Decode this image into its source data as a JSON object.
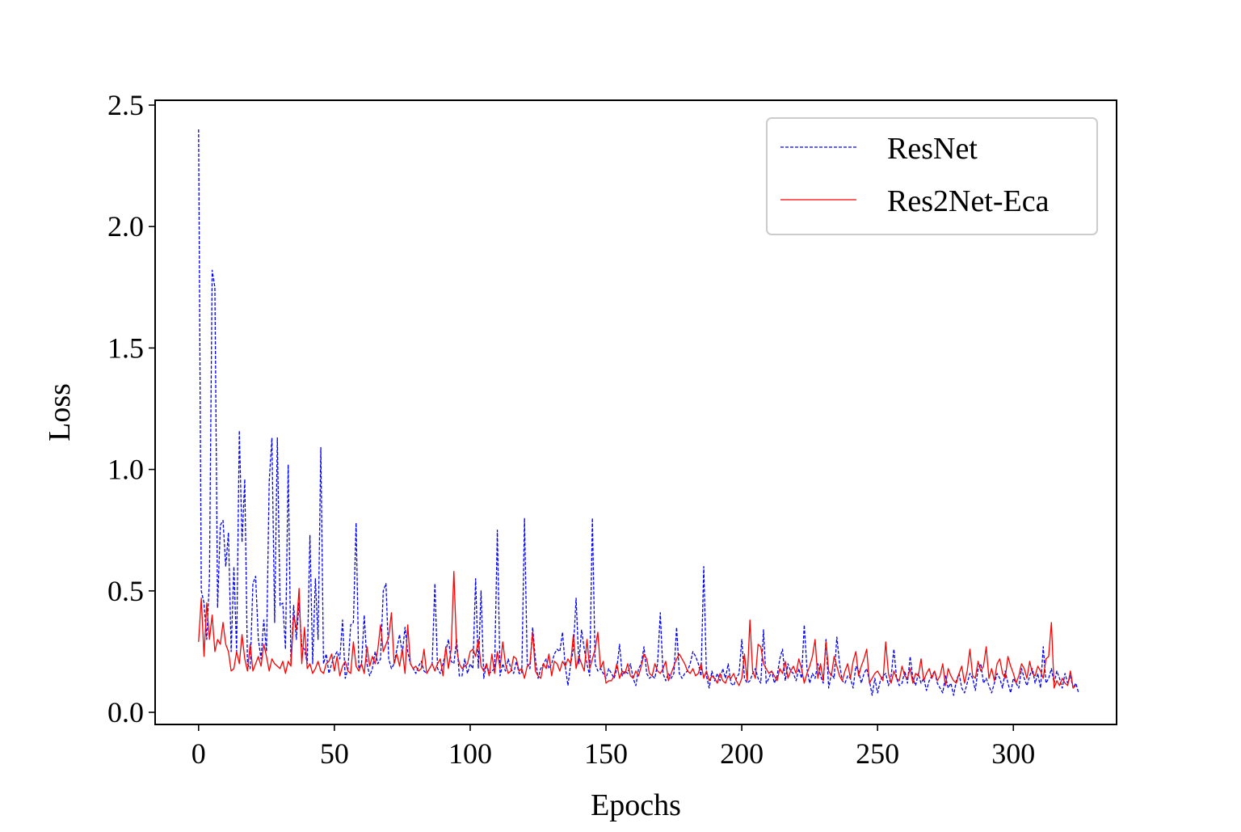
{
  "chart_data": {
    "type": "line",
    "title": "",
    "xlabel": "Epochs",
    "ylabel": "Loss",
    "xlim": [
      -16,
      338
    ],
    "ylim": [
      -0.05,
      2.52
    ],
    "xticks": [
      0,
      50,
      100,
      150,
      200,
      250,
      300
    ],
    "xtick_labels": [
      "0",
      "50",
      "100",
      "150",
      "200",
      "250",
      "300"
    ],
    "yticks": [
      0.0,
      0.5,
      1.0,
      1.5,
      2.0,
      2.5
    ],
    "ytick_labels": [
      "0.0",
      "0.5",
      "1.0",
      "1.5",
      "2.0",
      "2.5"
    ],
    "grid": false,
    "legend": {
      "position": "top-right",
      "entries": [
        "ResNet",
        "Res2Net-Eca"
      ]
    },
    "series": [
      {
        "name": "ResNet",
        "color": "#0000ff",
        "style": "dashed",
        "x_start": 0,
        "x_step": 1,
        "values": [
          2.4,
          0.5,
          0.45,
          0.3,
          0.55,
          1.82,
          1.75,
          0.43,
          0.77,
          0.79,
          0.6,
          0.74,
          0.25,
          0.6,
          0.25,
          1.16,
          0.7,
          0.96,
          0.2,
          0.18,
          0.53,
          0.56,
          0.3,
          0.22,
          0.38,
          0.25,
          0.95,
          1.13,
          0.37,
          1.13,
          0.44,
          0.45,
          0.26,
          1.02,
          0.2,
          0.44,
          0.3,
          0.45,
          0.27,
          0.26,
          0.2,
          0.73,
          0.2,
          0.55,
          0.3,
          1.09,
          0.2,
          0.24,
          0.16,
          0.2,
          0.23,
          0.25,
          0.22,
          0.38,
          0.14,
          0.18,
          0.36,
          0.37,
          0.78,
          0.18,
          0.2,
          0.4,
          0.2,
          0.15,
          0.18,
          0.25,
          0.2,
          0.22,
          0.5,
          0.53,
          0.22,
          0.18,
          0.2,
          0.26,
          0.32,
          0.24,
          0.35,
          0.25,
          0.2,
          0.18,
          0.16,
          0.19,
          0.21,
          0.17,
          0.16,
          0.18,
          0.2,
          0.53,
          0.18,
          0.16,
          0.2,
          0.25,
          0.3,
          0.21,
          0.2,
          0.3,
          0.15,
          0.15,
          0.22,
          0.16,
          0.2,
          0.18,
          0.55,
          0.18,
          0.5,
          0.14,
          0.2,
          0.16,
          0.17,
          0.18,
          0.75,
          0.15,
          0.2,
          0.17,
          0.22,
          0.18,
          0.16,
          0.21,
          0.16,
          0.16,
          0.8,
          0.2,
          0.18,
          0.35,
          0.22,
          0.14,
          0.18,
          0.2,
          0.22,
          0.18,
          0.2,
          0.24,
          0.26,
          0.25,
          0.33,
          0.19,
          0.11,
          0.2,
          0.26,
          0.47,
          0.2,
          0.34,
          0.26,
          0.2,
          0.15,
          0.8,
          0.2,
          0.17,
          0.18,
          0.16,
          0.14,
          0.18,
          0.16,
          0.14,
          0.18,
          0.28,
          0.15,
          0.17,
          0.16,
          0.2,
          0.14,
          0.11,
          0.18,
          0.2,
          0.27,
          0.16,
          0.14,
          0.15,
          0.14,
          0.2,
          0.41,
          0.16,
          0.13,
          0.16,
          0.14,
          0.16,
          0.35,
          0.16,
          0.14,
          0.16,
          0.17,
          0.2,
          0.25,
          0.23,
          0.2,
          0.15,
          0.6,
          0.15,
          0.1,
          0.17,
          0.13,
          0.16,
          0.13,
          0.18,
          0.14,
          0.2,
          0.12,
          0.11,
          0.14,
          0.16,
          0.3,
          0.14,
          0.12,
          0.13,
          0.16,
          0.18,
          0.14,
          0.12,
          0.34,
          0.12,
          0.14,
          0.17,
          0.12,
          0.15,
          0.22,
          0.26,
          0.13,
          0.2,
          0.17,
          0.16,
          0.13,
          0.18,
          0.14,
          0.36,
          0.18,
          0.12,
          0.16,
          0.14,
          0.2,
          0.15,
          0.12,
          0.3,
          0.1,
          0.16,
          0.14,
          0.31,
          0.2,
          0.13,
          0.12,
          0.15,
          0.14,
          0.1,
          0.19,
          0.17,
          0.12,
          0.16,
          0.18,
          0.13,
          0.07,
          0.14,
          0.08,
          0.13,
          0.15,
          0.16,
          0.11,
          0.15,
          0.26,
          0.14,
          0.11,
          0.12,
          0.17,
          0.12,
          0.23,
          0.14,
          0.11,
          0.16,
          0.12,
          0.14,
          0.09,
          0.13,
          0.15,
          0.17,
          0.12,
          0.1,
          0.08,
          0.15,
          0.1,
          0.12,
          0.07,
          0.13,
          0.16,
          0.1,
          0.08,
          0.12,
          0.16,
          0.14,
          0.09,
          0.18,
          0.2,
          0.12,
          0.14,
          0.11,
          0.08,
          0.12,
          0.16,
          0.14,
          0.1,
          0.17,
          0.12,
          0.08,
          0.14,
          0.12,
          0.1,
          0.18,
          0.14,
          0.11,
          0.15,
          0.18,
          0.12,
          0.16,
          0.1,
          0.27,
          0.12,
          0.14,
          0.18,
          0.12,
          0.17,
          0.14,
          0.1,
          0.16,
          0.12,
          0.15,
          0.1,
          0.12,
          0.08
        ]
      },
      {
        "name": "Res2Net-Eca",
        "color": "#ff0000",
        "style": "solid",
        "x_start": 0,
        "x_step": 1,
        "values": [
          0.29,
          0.47,
          0.23,
          0.45,
          0.3,
          0.4,
          0.25,
          0.3,
          0.28,
          0.37,
          0.28,
          0.25,
          0.17,
          0.18,
          0.25,
          0.2,
          0.32,
          0.22,
          0.17,
          0.28,
          0.17,
          0.2,
          0.23,
          0.19,
          0.28,
          0.23,
          0.17,
          0.22,
          0.2,
          0.19,
          0.18,
          0.21,
          0.16,
          0.21,
          0.19,
          0.4,
          0.34,
          0.51,
          0.2,
          0.35,
          0.18,
          0.2,
          0.16,
          0.18,
          0.21,
          0.17,
          0.16,
          0.2,
          0.21,
          0.24,
          0.17,
          0.23,
          0.15,
          0.19,
          0.21,
          0.17,
          0.16,
          0.29,
          0.19,
          0.17,
          0.2,
          0.16,
          0.27,
          0.19,
          0.23,
          0.2,
          0.26,
          0.36,
          0.25,
          0.28,
          0.31,
          0.41,
          0.2,
          0.24,
          0.19,
          0.26,
          0.16,
          0.36,
          0.2,
          0.18,
          0.19,
          0.17,
          0.18,
          0.26,
          0.16,
          0.18,
          0.2,
          0.17,
          0.2,
          0.22,
          0.15,
          0.27,
          0.18,
          0.26,
          0.58,
          0.26,
          0.2,
          0.18,
          0.19,
          0.2,
          0.25,
          0.26,
          0.23,
          0.3,
          0.19,
          0.17,
          0.2,
          0.15,
          0.24,
          0.16,
          0.25,
          0.18,
          0.29,
          0.2,
          0.16,
          0.17,
          0.23,
          0.22,
          0.17,
          0.18,
          0.14,
          0.19,
          0.2,
          0.33,
          0.17,
          0.15,
          0.14,
          0.2,
          0.18,
          0.24,
          0.15,
          0.21,
          0.2,
          0.17,
          0.21,
          0.19,
          0.22,
          0.2,
          0.32,
          0.18,
          0.23,
          0.2,
          0.17,
          0.3,
          0.18,
          0.22,
          0.26,
          0.33,
          0.18,
          0.21,
          0.12,
          0.13,
          0.13,
          0.15,
          0.2,
          0.14,
          0.17,
          0.16,
          0.2,
          0.15,
          0.14,
          0.17,
          0.15,
          0.19,
          0.24,
          0.22,
          0.16,
          0.15,
          0.2,
          0.17,
          0.16,
          0.18,
          0.21,
          0.13,
          0.16,
          0.19,
          0.22,
          0.24,
          0.22,
          0.2,
          0.17,
          0.16,
          0.18,
          0.15,
          0.16,
          0.2,
          0.14,
          0.17,
          0.13,
          0.15,
          0.14,
          0.12,
          0.16,
          0.13,
          0.12,
          0.15,
          0.14,
          0.16,
          0.13,
          0.11,
          0.14,
          0.24,
          0.13,
          0.38,
          0.17,
          0.14,
          0.28,
          0.27,
          0.2,
          0.18,
          0.16,
          0.17,
          0.15,
          0.13,
          0.18,
          0.16,
          0.21,
          0.14,
          0.17,
          0.19,
          0.16,
          0.22,
          0.18,
          0.12,
          0.16,
          0.19,
          0.23,
          0.3,
          0.14,
          0.2,
          0.13,
          0.29,
          0.17,
          0.15,
          0.23,
          0.19,
          0.15,
          0.13,
          0.17,
          0.2,
          0.14,
          0.21,
          0.25,
          0.15,
          0.19,
          0.22,
          0.26,
          0.12,
          0.14,
          0.16,
          0.17,
          0.15,
          0.13,
          0.29,
          0.16,
          0.12,
          0.17,
          0.14,
          0.13,
          0.19,
          0.15,
          0.14,
          0.18,
          0.12,
          0.16,
          0.15,
          0.22,
          0.13,
          0.16,
          0.18,
          0.14,
          0.17,
          0.13,
          0.15,
          0.2,
          0.11,
          0.18,
          0.15,
          0.13,
          0.12,
          0.16,
          0.19,
          0.12,
          0.17,
          0.26,
          0.15,
          0.14,
          0.21,
          0.17,
          0.19,
          0.27,
          0.14,
          0.18,
          0.13,
          0.2,
          0.22,
          0.16,
          0.14,
          0.23,
          0.19,
          0.16,
          0.12,
          0.15,
          0.2,
          0.18,
          0.14,
          0.21,
          0.16,
          0.15,
          0.19,
          0.17,
          0.14,
          0.22,
          0.23,
          0.37,
          0.1,
          0.13,
          0.11,
          0.14,
          0.12,
          0.11,
          0.17,
          0.1,
          0.11
        ]
      }
    ]
  }
}
